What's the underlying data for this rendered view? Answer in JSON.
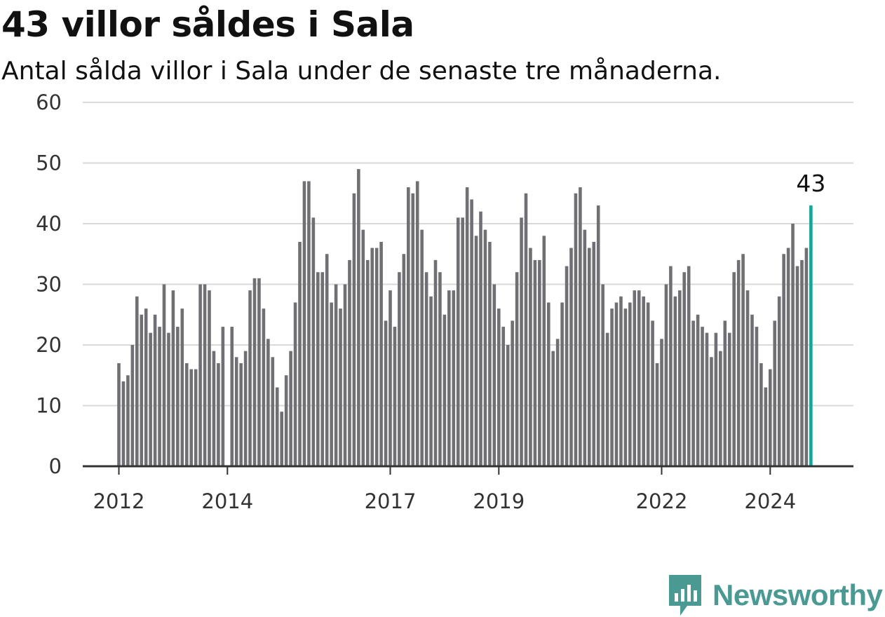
{
  "title": "43 villor såldes i Sala",
  "subtitle": "Antal sålda villor i Sala under de senaste tre månaderna.",
  "brand": {
    "name": "Newsworthy"
  },
  "colors": {
    "bar": "#707074",
    "highlight": "#1aa39a",
    "grid": "#d9d9d9",
    "axis": "#333333",
    "brand": "#4a9a93"
  },
  "chart_data": {
    "type": "bar",
    "title": "43 villor såldes i Sala",
    "subtitle": "Antal sålda villor i Sala under de senaste tre månaderna.",
    "xlabel": "",
    "ylabel": "",
    "ylim": [
      0,
      60
    ],
    "yticks": [
      0,
      10,
      20,
      30,
      40,
      50,
      60
    ],
    "xtick_labels": [
      "2012",
      "2014",
      "2017",
      "2019",
      "2022",
      "2024"
    ],
    "grid": true,
    "first_month": "2012-01",
    "values": [
      17,
      14,
      15,
      20,
      28,
      25,
      26,
      22,
      25,
      23,
      30,
      22,
      29,
      23,
      26,
      17,
      16,
      16,
      30,
      30,
      29,
      19,
      17,
      23,
      0,
      23,
      18,
      17,
      19,
      29,
      31,
      31,
      26,
      21,
      18,
      13,
      9,
      15,
      19,
      27,
      37,
      47,
      47,
      41,
      32,
      32,
      35,
      27,
      30,
      26,
      30,
      34,
      45,
      49,
      39,
      34,
      36,
      36,
      37,
      24,
      29,
      23,
      32,
      35,
      46,
      45,
      47,
      39,
      32,
      28,
      34,
      32,
      25,
      29,
      29,
      41,
      41,
      46,
      44,
      38,
      42,
      39,
      37,
      30,
      26,
      23,
      20,
      24,
      32,
      41,
      45,
      36,
      34,
      34,
      38,
      27,
      19,
      21,
      27,
      33,
      36,
      45,
      46,
      39,
      36,
      37,
      43,
      30,
      22,
      26,
      27,
      28,
      26,
      27,
      29,
      29,
      28,
      27,
      24,
      17,
      21,
      30,
      33,
      28,
      29,
      32,
      33,
      24,
      25,
      23,
      22,
      18,
      22,
      19,
      24,
      22,
      32,
      34,
      35,
      29,
      25,
      23,
      17,
      13,
      16,
      24,
      28,
      35,
      36,
      40,
      33,
      34,
      36,
      43
    ],
    "highlight_index": 153,
    "annotation": "43"
  }
}
